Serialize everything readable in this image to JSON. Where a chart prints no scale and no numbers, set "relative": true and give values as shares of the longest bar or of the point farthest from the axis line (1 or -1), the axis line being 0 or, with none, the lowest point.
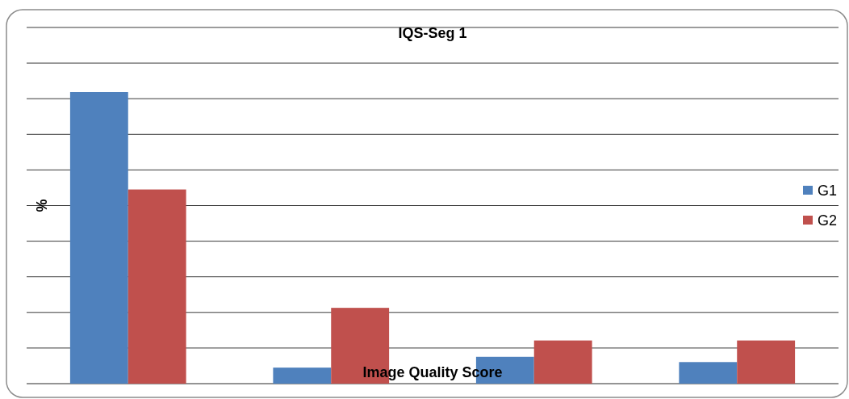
{
  "chart_data": {
    "type": "bar",
    "title": "IQS-Seg 1",
    "xlabel": "Image Quality Score",
    "ylabel": "%",
    "categories": [
      null,
      null,
      null,
      null
    ],
    "series": [
      {
        "name": "G1",
        "color": "#4f81bd",
        "values": [
          1,
          0.055,
          0.092,
          0.074
        ]
      },
      {
        "name": "G2",
        "color": "#c0504d",
        "values": [
          0.666,
          0.26,
          0.148,
          0.148
        ]
      }
    ],
    "relative": true,
    "grid": true,
    "legend": "right"
  }
}
